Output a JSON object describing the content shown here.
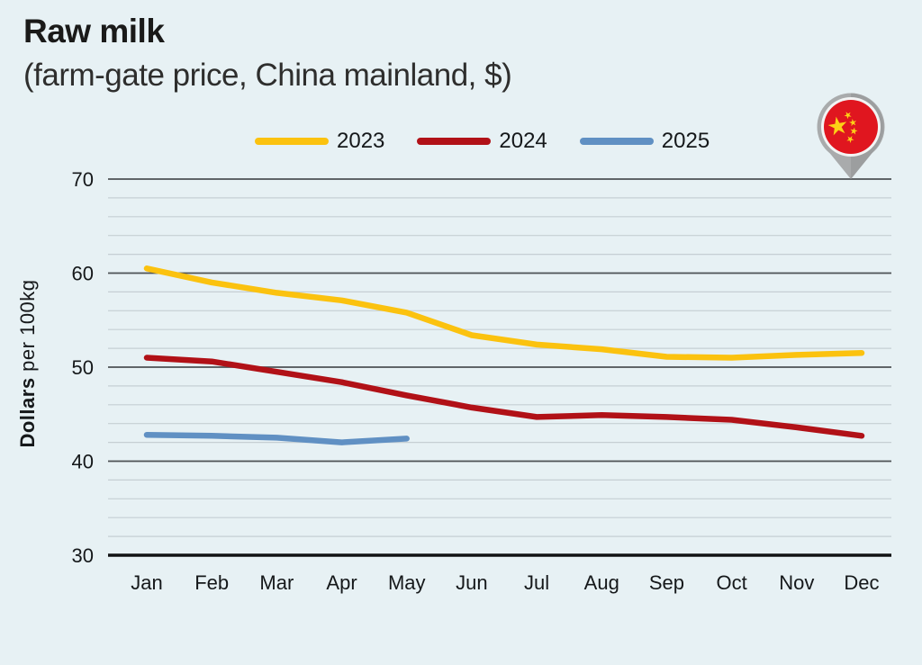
{
  "header": {
    "title": "Raw milk",
    "subtitle": "(farm-gate price, China mainland, $)"
  },
  "legend": {
    "items": [
      {
        "label": "2023",
        "color": "#fbc20f"
      },
      {
        "label": "2024",
        "color": "#b11117"
      },
      {
        "label": "2025",
        "color": "#6090c3"
      }
    ]
  },
  "flag_badge": {
    "country": "China",
    "icon": "china-flag-location-pin"
  },
  "colors": {
    "background": "#e7f1f4",
    "grid_minor": "#c6cfd3",
    "grid_major": "#4d5154",
    "axis_baseline": "#111214",
    "text": "#15181a"
  },
  "chart_data": {
    "type": "line",
    "title": "Raw milk",
    "subtitle": "(farm-gate price, China mainland, $)",
    "ylabel_bold": "Dollars",
    "ylabel_rest": "per 100kg",
    "x_categories": [
      "Jan",
      "Feb",
      "Mar",
      "Apr",
      "May",
      "Jun",
      "Jul",
      "Aug",
      "Sep",
      "Oct",
      "Nov",
      "Dec"
    ],
    "ylim": [
      30,
      70
    ],
    "ytick_labels": [
      30,
      40,
      50,
      60,
      70
    ],
    "ytick_minor_step": 2,
    "grid": "horizontal",
    "legend_position": "top-center",
    "series": [
      {
        "name": "2023",
        "color": "#fbc20f",
        "values": [
          60.5,
          59.0,
          57.9,
          57.1,
          55.8,
          53.4,
          52.4,
          51.9,
          51.1,
          51.0,
          51.3,
          51.5
        ]
      },
      {
        "name": "2024",
        "color": "#b11117",
        "values": [
          51.0,
          50.6,
          49.5,
          48.4,
          47.0,
          45.7,
          44.7,
          44.9,
          44.7,
          44.4,
          43.6,
          42.7
        ]
      },
      {
        "name": "2025",
        "color": "#6090c3",
        "values": [
          42.8,
          42.7,
          42.5,
          42.0,
          42.4
        ]
      }
    ]
  }
}
